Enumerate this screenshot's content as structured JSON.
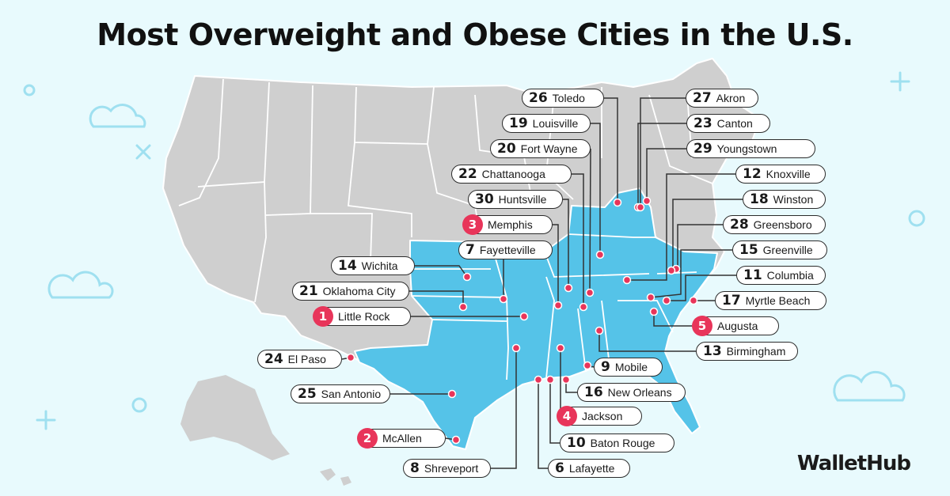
{
  "title": "Most Overweight and Obese Cities in the U.S.",
  "brand": "WalletHub",
  "colors": {
    "background": "#e8fafd",
    "land": "#cfcfcf",
    "highlight": "#55c3e8",
    "marker": "#e8355a",
    "border": "#ffffff",
    "deco": "#9fe0f0"
  },
  "cities": [
    {
      "rank": "1",
      "name": "Little Rock"
    },
    {
      "rank": "2",
      "name": "McAllen"
    },
    {
      "rank": "3",
      "name": "Memphis"
    },
    {
      "rank": "4",
      "name": "Jackson"
    },
    {
      "rank": "5",
      "name": "Augusta"
    },
    {
      "rank": "6",
      "name": "Lafayette"
    },
    {
      "rank": "7",
      "name": "Fayetteville"
    },
    {
      "rank": "8",
      "name": "Shreveport"
    },
    {
      "rank": "9",
      "name": "Mobile"
    },
    {
      "rank": "10",
      "name": "Baton Rouge"
    },
    {
      "rank": "11",
      "name": "Columbia"
    },
    {
      "rank": "12",
      "name": "Knoxville"
    },
    {
      "rank": "13",
      "name": "Birmingham"
    },
    {
      "rank": "14",
      "name": "Wichita"
    },
    {
      "rank": "15",
      "name": "Greenville"
    },
    {
      "rank": "16",
      "name": "New Orleans"
    },
    {
      "rank": "17",
      "name": "Myrtle Beach"
    },
    {
      "rank": "18",
      "name": "Winston"
    },
    {
      "rank": "19",
      "name": "Louisville"
    },
    {
      "rank": "20",
      "name": "Fort Wayne"
    },
    {
      "rank": "21",
      "name": "Oklahoma City"
    },
    {
      "rank": "22",
      "name": "Chattanooga"
    },
    {
      "rank": "23",
      "name": "Canton"
    },
    {
      "rank": "24",
      "name": "El Paso"
    },
    {
      "rank": "25",
      "name": "San Antonio"
    },
    {
      "rank": "26",
      "name": "Toledo"
    },
    {
      "rank": "27",
      "name": "Akron"
    },
    {
      "rank": "28",
      "name": "Greensboro"
    },
    {
      "rank": "29",
      "name": "Youngstown"
    },
    {
      "rank": "30",
      "name": "Huntsville"
    }
  ]
}
